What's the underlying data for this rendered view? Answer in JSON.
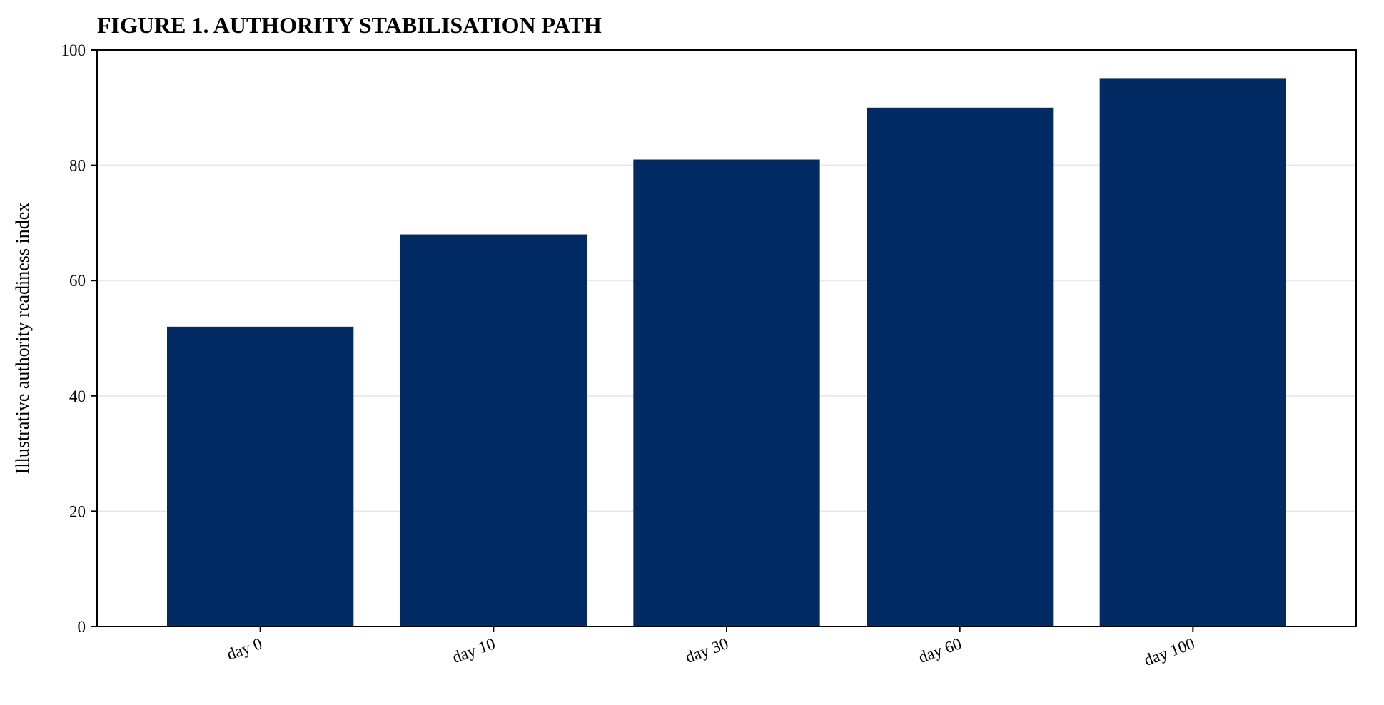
{
  "chart_data": {
    "type": "bar",
    "title": "FIGURE 1. AUTHORITY STABILISATION PATH",
    "xlabel": "",
    "ylabel": "Illustrative authority readiness index",
    "categories": [
      "day 0",
      "day 10",
      "day 30",
      "day 60",
      "day 100"
    ],
    "values": [
      52,
      68,
      81,
      90,
      95
    ],
    "ylim": [
      0,
      100
    ],
    "yticks": [
      0,
      20,
      40,
      60,
      80,
      100
    ],
    "grid": "horizontal",
    "legend": "none",
    "bar_color": "#022A63",
    "grid_color": "#E8E8E8"
  }
}
